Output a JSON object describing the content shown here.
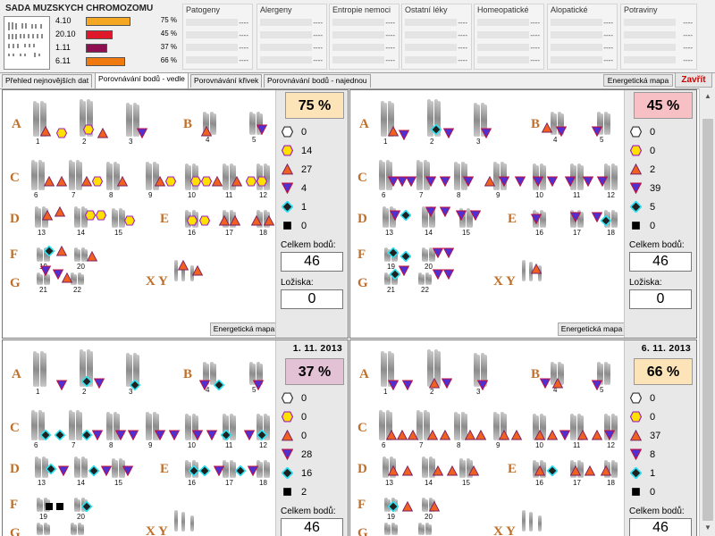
{
  "app": {
    "title": "SADA MUZSKYCH CHROMOZOMU",
    "close_label": "Zavřít",
    "energy_map_label": "Energetická mapa"
  },
  "summary": {
    "records": [
      {
        "date": "4.10",
        "percent": "75 %",
        "value": 75,
        "color": "#f5a623"
      },
      {
        "date": "20.10",
        "percent": "45 %",
        "value": 45,
        "color": "#e0162b"
      },
      {
        "date": "1.11",
        "percent": "37 %",
        "value": 37,
        "color": "#8e1050"
      },
      {
        "date": "6.11",
        "percent": "66 %",
        "value": 66,
        "color": "#f07a10"
      }
    ],
    "categories": [
      {
        "name": "Patogeny"
      },
      {
        "name": "Alergeny"
      },
      {
        "name": "Entropie nemoci"
      },
      {
        "name": "Ostatní léky"
      },
      {
        "name": "Homeopatické"
      },
      {
        "name": "Alopatické"
      },
      {
        "name": "Potraviny"
      }
    ],
    "empty_value": "----"
  },
  "tabs": [
    {
      "label": "Přehled nejnovějších dat",
      "active": false
    },
    {
      "label": "Porovnávání bodů - vedle",
      "active": true
    },
    {
      "label": "Porovnávání křivek",
      "active": false
    },
    {
      "label": "Porovnávání bodů - najednou",
      "active": false
    }
  ],
  "labels": {
    "total": "Celkem bodů:",
    "deposits": "Ložiska:"
  },
  "panels": [
    {
      "date": "",
      "percent": "75 %",
      "percent_bg": "#fde3b8",
      "counts": [
        0,
        14,
        27,
        4,
        1,
        0
      ],
      "total": "46",
      "deposits": "0"
    },
    {
      "date": "",
      "percent": "45 %",
      "percent_bg": "#f6c0c4",
      "counts": [
        0,
        0,
        2,
        39,
        5,
        0
      ],
      "total": "46",
      "deposits": "0"
    },
    {
      "date": "1. 11. 2013",
      "percent": "37 %",
      "percent_bg": "#e3c2d6",
      "counts": [
        0,
        0,
        0,
        28,
        16,
        2
      ],
      "total": "46",
      "deposits": ""
    },
    {
      "date": "6. 11. 2013",
      "percent": "66 %",
      "percent_bg": "#fde3b8",
      "counts": [
        0,
        0,
        37,
        8,
        1,
        0
      ],
      "total": "46",
      "deposits": ""
    }
  ],
  "karyotype": {
    "groups": [
      "A",
      "B",
      "C",
      "D",
      "E",
      "F",
      "G",
      "X Y"
    ],
    "numbers": [
      "1",
      "2",
      "3",
      "4",
      "5",
      "6",
      "7",
      "8",
      "9",
      "10",
      "11",
      "12",
      "13",
      "14",
      "15",
      "16",
      "17",
      "18",
      "19",
      "20",
      "21",
      "22"
    ]
  },
  "marker_icons": [
    "hexagon-white-icon",
    "hexagon-yellow-icon",
    "triangle-up-icon",
    "triangle-down-icon",
    "diamond-icon",
    "square-icon"
  ]
}
